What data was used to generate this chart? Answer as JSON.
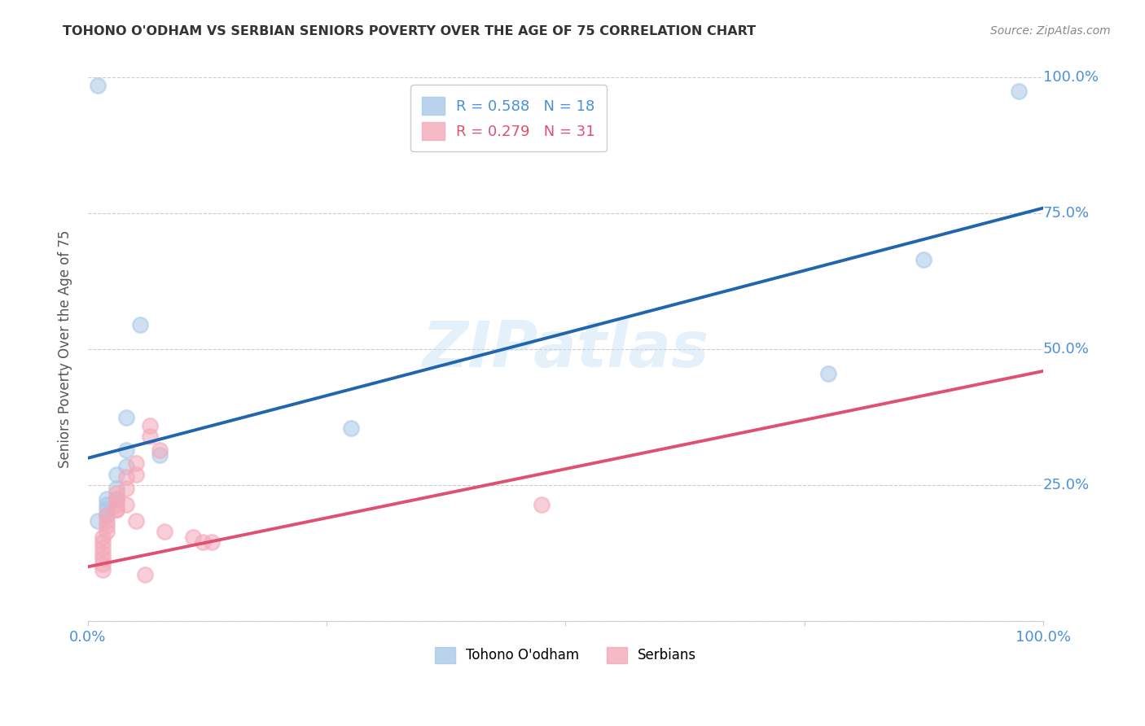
{
  "title": "TOHONO O'ODHAM VS SERBIAN SENIORS POVERTY OVER THE AGE OF 75 CORRELATION CHART",
  "source": "Source: ZipAtlas.com",
  "ylabel": "Seniors Poverty Over the Age of 75",
  "watermark": "ZIPatlas",
  "tohono_points": [
    [
      0.01,
      0.985
    ],
    [
      0.975,
      0.975
    ],
    [
      0.055,
      0.545
    ],
    [
      0.875,
      0.665
    ],
    [
      0.775,
      0.455
    ],
    [
      0.275,
      0.355
    ],
    [
      0.04,
      0.375
    ],
    [
      0.04,
      0.315
    ],
    [
      0.04,
      0.285
    ],
    [
      0.075,
      0.305
    ],
    [
      0.03,
      0.27
    ],
    [
      0.03,
      0.245
    ],
    [
      0.03,
      0.225
    ],
    [
      0.02,
      0.225
    ],
    [
      0.02,
      0.215
    ],
    [
      0.02,
      0.205
    ],
    [
      0.02,
      0.195
    ],
    [
      0.01,
      0.185
    ]
  ],
  "serbian_points": [
    [
      0.475,
      0.215
    ],
    [
      0.065,
      0.36
    ],
    [
      0.065,
      0.34
    ],
    [
      0.075,
      0.315
    ],
    [
      0.05,
      0.29
    ],
    [
      0.05,
      0.27
    ],
    [
      0.04,
      0.265
    ],
    [
      0.04,
      0.245
    ],
    [
      0.03,
      0.235
    ],
    [
      0.03,
      0.215
    ],
    [
      0.03,
      0.205
    ],
    [
      0.02,
      0.195
    ],
    [
      0.02,
      0.185
    ],
    [
      0.02,
      0.175
    ],
    [
      0.02,
      0.165
    ],
    [
      0.015,
      0.155
    ],
    [
      0.015,
      0.145
    ],
    [
      0.015,
      0.135
    ],
    [
      0.015,
      0.125
    ],
    [
      0.015,
      0.115
    ],
    [
      0.015,
      0.105
    ],
    [
      0.015,
      0.095
    ],
    [
      0.08,
      0.165
    ],
    [
      0.11,
      0.155
    ],
    [
      0.12,
      0.145
    ],
    [
      0.13,
      0.145
    ],
    [
      0.03,
      0.225
    ],
    [
      0.03,
      0.205
    ],
    [
      0.04,
      0.215
    ],
    [
      0.05,
      0.185
    ],
    [
      0.06,
      0.085
    ]
  ],
  "tohono_line": [
    0.0,
    0.3,
    1.0,
    0.76
  ],
  "serbian_line": [
    0.0,
    0.1,
    1.0,
    0.46
  ],
  "tohono_color": "#a8c8e8",
  "serbian_color": "#f4a8b8",
  "tohono_line_color": "#2166ac",
  "serbian_line_color": "#e05070",
  "bg_color": "#ffffff",
  "grid_color": "#cccccc",
  "title_color": "#333333",
  "axis_label_color": "#555555",
  "tick_color": "#4a90d9"
}
